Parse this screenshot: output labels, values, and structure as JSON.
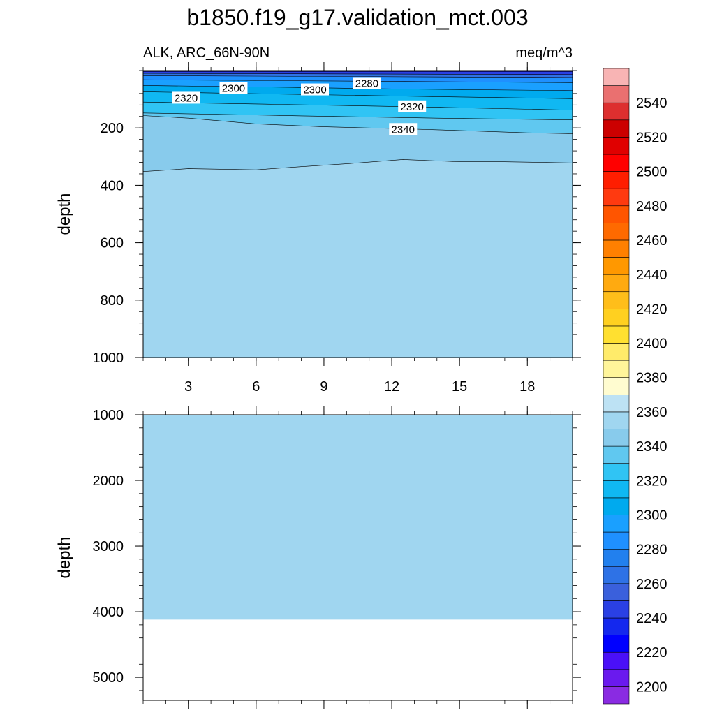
{
  "page": {
    "title": "b1850.f19_g17.validation_mct.003",
    "subtitle_left": "ALK, ARC_66N-90N",
    "subtitle_right": "meq/m^3"
  },
  "chart_data": [
    {
      "type": "heatmap",
      "panel": "upper",
      "xlabel": "",
      "ylabel": "depth",
      "xlim": [
        1,
        20
      ],
      "ylim": [
        1000,
        0
      ],
      "x_ticks": [
        3,
        6,
        9,
        12,
        15,
        18
      ],
      "y_ticks": [
        200,
        400,
        600,
        800,
        1000
      ],
      "grid": false,
      "contour_lines": [
        {
          "level": 2220,
          "points": [
            [
              1,
              0
            ],
            [
              20,
              0
            ]
          ]
        },
        {
          "level": 2240,
          "points": [
            [
              1,
              4
            ],
            [
              20,
              4
            ]
          ]
        },
        {
          "level": 2260,
          "points": [
            [
              1,
              10
            ],
            [
              20,
              14
            ]
          ]
        },
        {
          "level": 2280,
          "points": [
            [
              1,
              18
            ],
            [
              20,
              24
            ]
          ]
        },
        {
          "level": 2290,
          "points": [
            [
              1,
              32
            ],
            [
              20,
              42
            ]
          ]
        },
        {
          "level": 2300,
          "points": [
            [
              1,
              52
            ],
            [
              6,
              57
            ],
            [
              12,
              64
            ],
            [
              20,
              70
            ]
          ]
        },
        {
          "level": 2310,
          "points": [
            [
              1,
              74
            ],
            [
              7,
              82
            ],
            [
              14,
              91
            ],
            [
              20,
              98
            ]
          ]
        },
        {
          "level": 2320,
          "points": [
            [
              1,
              110
            ],
            [
              7,
              118
            ],
            [
              14,
              128
            ],
            [
              20,
              138
            ]
          ]
        },
        {
          "level": 2330,
          "points": [
            [
              1,
              148
            ],
            [
              8,
              158
            ],
            [
              14,
              166
            ],
            [
              20,
              172
            ]
          ]
        },
        {
          "level": 2340,
          "points": [
            [
              1,
              157
            ],
            [
              3,
              166
            ],
            [
              6,
              186
            ],
            [
              9,
              196
            ],
            [
              12,
              202
            ],
            [
              15,
              209
            ],
            [
              18,
              217
            ],
            [
              20,
              220
            ]
          ]
        },
        {
          "level": 2350,
          "points": [
            [
              1,
              352
            ],
            [
              3,
              342
            ],
            [
              6,
              346
            ],
            [
              8,
              335
            ],
            [
              10,
              325
            ],
            [
              12.5,
              310
            ],
            [
              15,
              318
            ],
            [
              17,
              318
            ],
            [
              20,
              322
            ]
          ]
        }
      ],
      "fills": [
        {
          "from": 0,
          "to": 4,
          "value": 2220
        },
        {
          "from": 4,
          "to": 14,
          "value": 2240
        },
        {
          "from": 14,
          "to": 24,
          "value": 2260
        },
        {
          "from": 24,
          "to": 42,
          "value": 2280
        },
        {
          "from": 42,
          "to": 70,
          "value": 2290
        },
        {
          "from": 70,
          "to": 98,
          "value": 2300
        },
        {
          "from": 98,
          "to": 138,
          "value": 2310
        },
        {
          "from": 138,
          "to": 172,
          "value": 2320
        },
        {
          "from": 172,
          "to": 220,
          "value": 2330
        },
        {
          "from": 220,
          "to": 322,
          "value": 2340
        },
        {
          "from": 322,
          "to": 1000,
          "value": 2350
        }
      ],
      "contour_labels": [
        {
          "text": "2320",
          "x": 2.9,
          "y": 96
        },
        {
          "text": "2300",
          "x": 5.0,
          "y": 62
        },
        {
          "text": "2300",
          "x": 8.6,
          "y": 67
        },
        {
          "text": "2280",
          "x": 10.9,
          "y": 45
        },
        {
          "text": "2320",
          "x": 12.9,
          "y": 126
        },
        {
          "text": "2340",
          "x": 12.5,
          "y": 205
        }
      ]
    },
    {
      "type": "heatmap",
      "panel": "lower",
      "xlabel": "",
      "ylabel": "depth",
      "xlim": [
        1,
        20
      ],
      "ylim": [
        5350,
        1000
      ],
      "y_ticks": [
        1000,
        2000,
        3000,
        4000,
        5000
      ],
      "grid": false,
      "fills": [
        {
          "from": 1000,
          "to": 4120,
          "value": 2350
        }
      ],
      "no_data_below": 4120
    }
  ],
  "colorbar": {
    "levels": [
      2190,
      2200,
      2210,
      2220,
      2230,
      2240,
      2250,
      2260,
      2270,
      2280,
      2290,
      2300,
      2310,
      2320,
      2330,
      2340,
      2350,
      2360,
      2370,
      2380,
      2390,
      2400,
      2410,
      2420,
      2430,
      2440,
      2450,
      2460,
      2470,
      2480,
      2490,
      2500,
      2510,
      2520,
      2530,
      2540,
      2550,
      2560
    ],
    "colors": [
      "#8a2be2",
      "#6a1aee",
      "#4a10f8",
      "#0000ff",
      "#1428ee",
      "#2a40e4",
      "#3a60dc",
      "#2e72e6",
      "#2280ee",
      "#1f90ff",
      "#1aa0ff",
      "#00aaee",
      "#10b8f2",
      "#30c4f4",
      "#60c8f0",
      "#88cbec",
      "#a0d6f0",
      "#bde2f4",
      "#fffcd0",
      "#fff59a",
      "#ffeb6a",
      "#ffe030",
      "#ffd020",
      "#ffbe1a",
      "#ffaa10",
      "#ff9800",
      "#ff8000",
      "#ff6a00",
      "#ff5500",
      "#ff3a10",
      "#ff1e00",
      "#ff0000",
      "#e00000",
      "#cc0000",
      "#dd2f2f",
      "#ea7070",
      "#f8b4b4"
    ],
    "labels": [
      2200,
      2220,
      2240,
      2260,
      2280,
      2300,
      2320,
      2340,
      2360,
      2380,
      2400,
      2420,
      2440,
      2460,
      2480,
      2500,
      2520,
      2540
    ]
  }
}
